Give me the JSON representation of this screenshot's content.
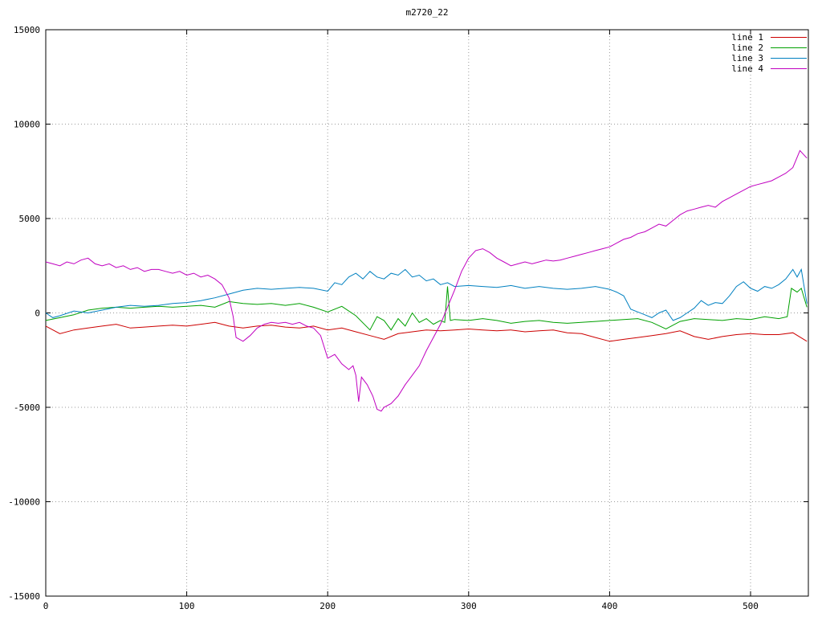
{
  "chart_data": {
    "type": "line",
    "title": "m2720_22",
    "xlabel": "",
    "ylabel": "",
    "xlim": [
      0,
      541
    ],
    "ylim": [
      -15000,
      15000
    ],
    "xticks": [
      0,
      100,
      200,
      300,
      400,
      500
    ],
    "yticks": [
      -15000,
      -10000,
      -5000,
      0,
      5000,
      10000,
      15000
    ],
    "grid": true,
    "grid_style": "dotted",
    "legend_position": "top-right",
    "series": [
      {
        "name": "line 1",
        "color": "#cc0000",
        "points": [
          [
            0,
            -700
          ],
          [
            10,
            -1100
          ],
          [
            20,
            -900
          ],
          [
            30,
            -800
          ],
          [
            40,
            -700
          ],
          [
            50,
            -600
          ],
          [
            60,
            -800
          ],
          [
            70,
            -750
          ],
          [
            80,
            -700
          ],
          [
            90,
            -650
          ],
          [
            100,
            -700
          ],
          [
            110,
            -600
          ],
          [
            120,
            -500
          ],
          [
            130,
            -700
          ],
          [
            140,
            -800
          ],
          [
            150,
            -700
          ],
          [
            160,
            -650
          ],
          [
            170,
            -750
          ],
          [
            180,
            -800
          ],
          [
            190,
            -700
          ],
          [
            200,
            -900
          ],
          [
            210,
            -800
          ],
          [
            220,
            -1000
          ],
          [
            230,
            -1200
          ],
          [
            240,
            -1400
          ],
          [
            250,
            -1100
          ],
          [
            260,
            -1000
          ],
          [
            270,
            -900
          ],
          [
            280,
            -950
          ],
          [
            290,
            -900
          ],
          [
            300,
            -850
          ],
          [
            310,
            -900
          ],
          [
            320,
            -950
          ],
          [
            330,
            -900
          ],
          [
            340,
            -1000
          ],
          [
            350,
            -950
          ],
          [
            360,
            -900
          ],
          [
            370,
            -1050
          ],
          [
            380,
            -1100
          ],
          [
            390,
            -1300
          ],
          [
            400,
            -1500
          ],
          [
            410,
            -1400
          ],
          [
            420,
            -1300
          ],
          [
            430,
            -1200
          ],
          [
            440,
            -1100
          ],
          [
            450,
            -950
          ],
          [
            460,
            -1250
          ],
          [
            470,
            -1400
          ],
          [
            480,
            -1250
          ],
          [
            490,
            -1150
          ],
          [
            500,
            -1100
          ],
          [
            510,
            -1150
          ],
          [
            520,
            -1150
          ],
          [
            530,
            -1050
          ],
          [
            540,
            -1500
          ]
        ]
      },
      {
        "name": "line 2",
        "color": "#00a000",
        "points": [
          [
            0,
            -400
          ],
          [
            10,
            -250
          ],
          [
            20,
            -100
          ],
          [
            30,
            150
          ],
          [
            40,
            250
          ],
          [
            50,
            300
          ],
          [
            60,
            250
          ],
          [
            70,
            300
          ],
          [
            80,
            350
          ],
          [
            90,
            300
          ],
          [
            100,
            350
          ],
          [
            110,
            400
          ],
          [
            120,
            300
          ],
          [
            130,
            600
          ],
          [
            140,
            500
          ],
          [
            150,
            450
          ],
          [
            160,
            500
          ],
          [
            170,
            400
          ],
          [
            180,
            500
          ],
          [
            190,
            300
          ],
          [
            200,
            50
          ],
          [
            210,
            350
          ],
          [
            220,
            -150
          ],
          [
            230,
            -900
          ],
          [
            235,
            -200
          ],
          [
            240,
            -400
          ],
          [
            245,
            -900
          ],
          [
            250,
            -300
          ],
          [
            255,
            -700
          ],
          [
            260,
            0
          ],
          [
            265,
            -500
          ],
          [
            270,
            -300
          ],
          [
            275,
            -600
          ],
          [
            280,
            -400
          ],
          [
            283,
            -500
          ],
          [
            285,
            1400
          ],
          [
            287,
            -400
          ],
          [
            290,
            -350
          ],
          [
            300,
            -400
          ],
          [
            310,
            -300
          ],
          [
            320,
            -400
          ],
          [
            330,
            -550
          ],
          [
            340,
            -450
          ],
          [
            350,
            -400
          ],
          [
            360,
            -500
          ],
          [
            370,
            -550
          ],
          [
            380,
            -500
          ],
          [
            390,
            -450
          ],
          [
            400,
            -400
          ],
          [
            410,
            -350
          ],
          [
            420,
            -300
          ],
          [
            430,
            -500
          ],
          [
            440,
            -850
          ],
          [
            450,
            -450
          ],
          [
            460,
            -300
          ],
          [
            470,
            -350
          ],
          [
            480,
            -400
          ],
          [
            490,
            -300
          ],
          [
            500,
            -350
          ],
          [
            510,
            -200
          ],
          [
            520,
            -300
          ],
          [
            526,
            -200
          ],
          [
            529,
            1300
          ],
          [
            533,
            1100
          ],
          [
            536,
            1300
          ],
          [
            540,
            300
          ]
        ]
      },
      {
        "name": "line 3",
        "color": "#0080c0",
        "points": [
          [
            0,
            0
          ],
          [
            5,
            -250
          ],
          [
            10,
            -150
          ],
          [
            20,
            100
          ],
          [
            30,
            0
          ],
          [
            40,
            150
          ],
          [
            50,
            300
          ],
          [
            60,
            400
          ],
          [
            70,
            350
          ],
          [
            80,
            400
          ],
          [
            90,
            500
          ],
          [
            100,
            550
          ],
          [
            110,
            650
          ],
          [
            120,
            800
          ],
          [
            130,
            1000
          ],
          [
            140,
            1200
          ],
          [
            150,
            1300
          ],
          [
            160,
            1250
          ],
          [
            170,
            1300
          ],
          [
            180,
            1350
          ],
          [
            190,
            1300
          ],
          [
            200,
            1150
          ],
          [
            205,
            1600
          ],
          [
            210,
            1500
          ],
          [
            215,
            1900
          ],
          [
            220,
            2100
          ],
          [
            225,
            1800
          ],
          [
            230,
            2200
          ],
          [
            235,
            1900
          ],
          [
            240,
            1800
          ],
          [
            245,
            2100
          ],
          [
            250,
            2000
          ],
          [
            255,
            2300
          ],
          [
            260,
            1900
          ],
          [
            265,
            2000
          ],
          [
            270,
            1700
          ],
          [
            275,
            1800
          ],
          [
            280,
            1500
          ],
          [
            285,
            1600
          ],
          [
            290,
            1400
          ],
          [
            300,
            1450
          ],
          [
            310,
            1400
          ],
          [
            320,
            1350
          ],
          [
            330,
            1450
          ],
          [
            340,
            1300
          ],
          [
            350,
            1400
          ],
          [
            360,
            1300
          ],
          [
            370,
            1250
          ],
          [
            380,
            1300
          ],
          [
            390,
            1400
          ],
          [
            400,
            1250
          ],
          [
            405,
            1100
          ],
          [
            410,
            900
          ],
          [
            415,
            200
          ],
          [
            420,
            50
          ],
          [
            425,
            -100
          ],
          [
            430,
            -250
          ],
          [
            435,
            0
          ],
          [
            440,
            150
          ],
          [
            445,
            -400
          ],
          [
            450,
            -250
          ],
          [
            455,
            0
          ],
          [
            460,
            250
          ],
          [
            465,
            650
          ],
          [
            470,
            400
          ],
          [
            475,
            550
          ],
          [
            480,
            500
          ],
          [
            485,
            900
          ],
          [
            490,
            1400
          ],
          [
            495,
            1650
          ],
          [
            500,
            1300
          ],
          [
            505,
            1150
          ],
          [
            510,
            1400
          ],
          [
            515,
            1300
          ],
          [
            520,
            1500
          ],
          [
            525,
            1800
          ],
          [
            530,
            2300
          ],
          [
            533,
            1900
          ],
          [
            536,
            2300
          ],
          [
            540,
            500
          ]
        ]
      },
      {
        "name": "line 4",
        "color": "#c000c0",
        "points": [
          [
            0,
            2700
          ],
          [
            5,
            2600
          ],
          [
            10,
            2500
          ],
          [
            15,
            2700
          ],
          [
            20,
            2600
          ],
          [
            25,
            2800
          ],
          [
            30,
            2900
          ],
          [
            35,
            2600
          ],
          [
            40,
            2500
          ],
          [
            45,
            2600
          ],
          [
            50,
            2400
          ],
          [
            55,
            2500
          ],
          [
            60,
            2300
          ],
          [
            65,
            2400
          ],
          [
            70,
            2200
          ],
          [
            75,
            2300
          ],
          [
            80,
            2300
          ],
          [
            85,
            2200
          ],
          [
            90,
            2100
          ],
          [
            95,
            2200
          ],
          [
            100,
            2000
          ],
          [
            105,
            2100
          ],
          [
            110,
            1900
          ],
          [
            115,
            2000
          ],
          [
            120,
            1800
          ],
          [
            125,
            1500
          ],
          [
            130,
            800
          ],
          [
            133,
            -200
          ],
          [
            135,
            -1300
          ],
          [
            140,
            -1500
          ],
          [
            145,
            -1200
          ],
          [
            150,
            -800
          ],
          [
            155,
            -600
          ],
          [
            160,
            -500
          ],
          [
            165,
            -550
          ],
          [
            170,
            -500
          ],
          [
            175,
            -600
          ],
          [
            180,
            -500
          ],
          [
            185,
            -700
          ],
          [
            190,
            -800
          ],
          [
            195,
            -1200
          ],
          [
            200,
            -2400
          ],
          [
            205,
            -2200
          ],
          [
            210,
            -2700
          ],
          [
            215,
            -3000
          ],
          [
            218,
            -2800
          ],
          [
            220,
            -3300
          ],
          [
            222,
            -4700
          ],
          [
            224,
            -3400
          ],
          [
            228,
            -3800
          ],
          [
            232,
            -4400
          ],
          [
            235,
            -5100
          ],
          [
            238,
            -5200
          ],
          [
            240,
            -5000
          ],
          [
            245,
            -4800
          ],
          [
            250,
            -4400
          ],
          [
            255,
            -3800
          ],
          [
            260,
            -3300
          ],
          [
            265,
            -2800
          ],
          [
            270,
            -2000
          ],
          [
            275,
            -1300
          ],
          [
            280,
            -600
          ],
          [
            285,
            300
          ],
          [
            290,
            1200
          ],
          [
            295,
            2200
          ],
          [
            300,
            2900
          ],
          [
            305,
            3300
          ],
          [
            310,
            3400
          ],
          [
            315,
            3200
          ],
          [
            320,
            2900
          ],
          [
            325,
            2700
          ],
          [
            330,
            2500
          ],
          [
            335,
            2600
          ],
          [
            340,
            2700
          ],
          [
            345,
            2600
          ],
          [
            350,
            2700
          ],
          [
            355,
            2800
          ],
          [
            360,
            2750
          ],
          [
            365,
            2800
          ],
          [
            370,
            2900
          ],
          [
            375,
            3000
          ],
          [
            380,
            3100
          ],
          [
            385,
            3200
          ],
          [
            390,
            3300
          ],
          [
            395,
            3400
          ],
          [
            400,
            3500
          ],
          [
            405,
            3700
          ],
          [
            410,
            3900
          ],
          [
            415,
            4000
          ],
          [
            420,
            4200
          ],
          [
            425,
            4300
          ],
          [
            430,
            4500
          ],
          [
            435,
            4700
          ],
          [
            440,
            4600
          ],
          [
            445,
            4900
          ],
          [
            450,
            5200
          ],
          [
            455,
            5400
          ],
          [
            460,
            5500
          ],
          [
            465,
            5600
          ],
          [
            470,
            5700
          ],
          [
            475,
            5600
          ],
          [
            480,
            5900
          ],
          [
            485,
            6100
          ],
          [
            490,
            6300
          ],
          [
            495,
            6500
          ],
          [
            500,
            6700
          ],
          [
            505,
            6800
          ],
          [
            510,
            6900
          ],
          [
            515,
            7000
          ],
          [
            520,
            7200
          ],
          [
            525,
            7400
          ],
          [
            530,
            7700
          ],
          [
            535,
            8600
          ],
          [
            540,
            8200
          ]
        ]
      }
    ]
  }
}
